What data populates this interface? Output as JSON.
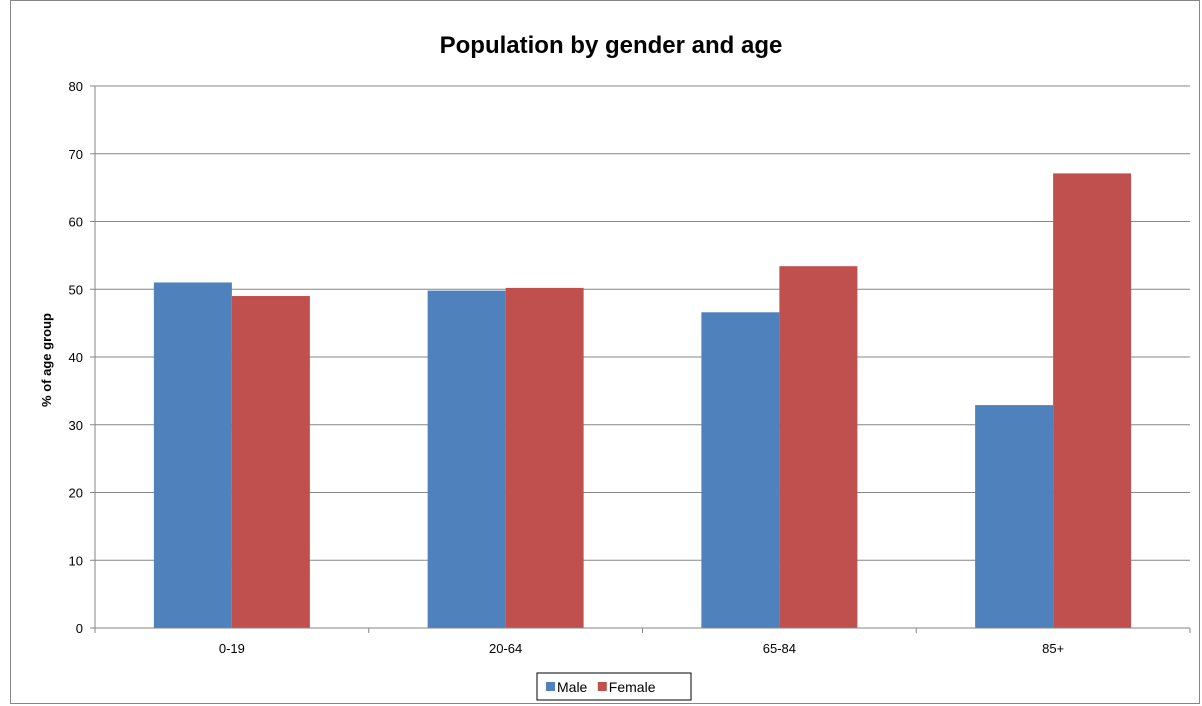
{
  "chart_data": {
    "type": "bar",
    "title": "Population by gender and age",
    "xlabel": "",
    "ylabel": "% of  age group",
    "categories": [
      "0-19",
      "20-64",
      "65-84",
      "85+"
    ],
    "series": [
      {
        "name": "Male",
        "color": "#4F81BD",
        "values": [
          51.0,
          49.8,
          46.6,
          32.9
        ]
      },
      {
        "name": "Female",
        "color": "#C0504D",
        "values": [
          49.0,
          50.2,
          53.4,
          67.1
        ]
      }
    ],
    "ylim": [
      0,
      80
    ],
    "yticks": [
      0,
      10,
      20,
      30,
      40,
      50,
      60,
      70,
      80
    ],
    "grid": true,
    "legend_position": "bottom"
  }
}
